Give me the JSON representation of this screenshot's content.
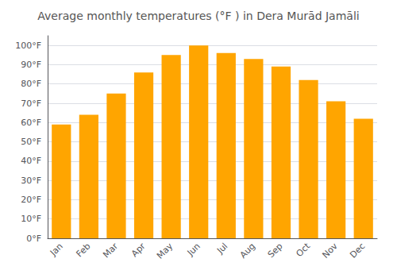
{
  "chart_data": {
    "type": "bar",
    "title": "Average monthly temperatures (°F ) in Dera Murād Jamāli",
    "categories": [
      "Jan",
      "Feb",
      "Mar",
      "Apr",
      "May",
      "Jun",
      "Jul",
      "Aug",
      "Sep",
      "Oct",
      "Nov",
      "Dec"
    ],
    "values": [
      59,
      64,
      75,
      86,
      95,
      100,
      96,
      93,
      89,
      82,
      71,
      62
    ],
    "color": "#FFA500",
    "ylim": [
      0,
      105
    ],
    "yticks": [
      {
        "value": 0,
        "label": "0°F"
      },
      {
        "value": 10,
        "label": "10°F"
      },
      {
        "value": 20,
        "label": "20°F"
      },
      {
        "value": 30,
        "label": "30°F"
      },
      {
        "value": 40,
        "label": "40°F"
      },
      {
        "value": 50,
        "label": "50°F"
      },
      {
        "value": 60,
        "label": "60°F"
      },
      {
        "value": 70,
        "label": "70°F"
      },
      {
        "value": 80,
        "label": "80°F"
      },
      {
        "value": 90,
        "label": "90°F"
      },
      {
        "value": 100,
        "label": "100°F"
      }
    ],
    "grid": true
  }
}
